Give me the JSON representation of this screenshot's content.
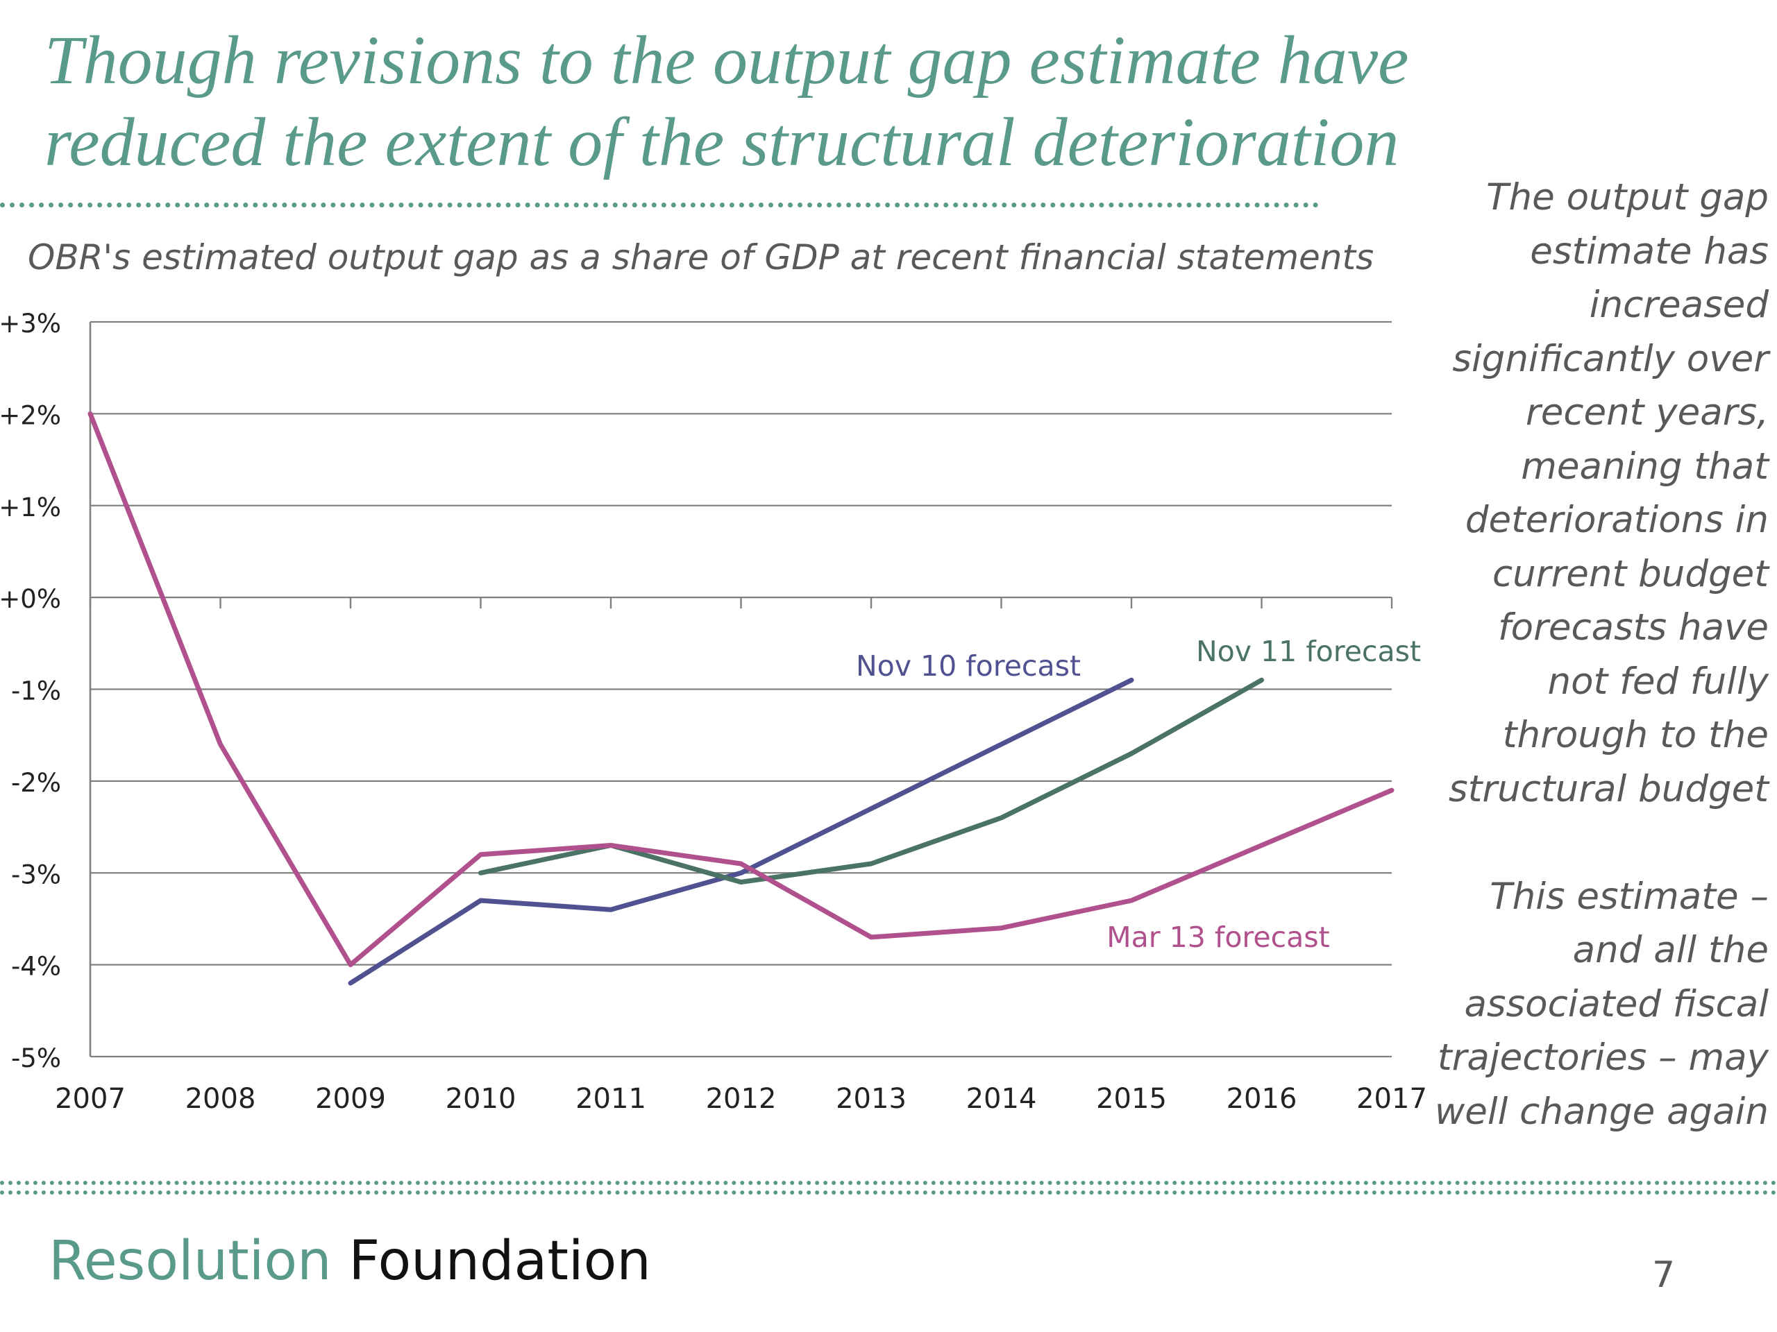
{
  "slide": {
    "title": "Though revisions to the output gap estimate have reduced the extent of the structural deterioration",
    "side_note_1": "The output gap estimate has increased significantly over recent years, meaning that deteriorations in current budget forecasts have not fed fully through to the structural budget",
    "side_note_2": "This estimate – and all the associated fiscal trajectories – may well change again",
    "brand_part1": "Resolution",
    "brand_part2": "Foundation",
    "page_number": "7"
  },
  "colors": {
    "title": "#5a9a8a",
    "nov10": "#4f5190",
    "nov11": "#4a7365",
    "mar13": "#b0508c",
    "grid": "#808080"
  },
  "chart_data": {
    "type": "line",
    "title": "OBR's estimated output gap as a share of GDP at recent financial statements",
    "xlabel": "",
    "ylabel": "",
    "x": [
      2007,
      2008,
      2009,
      2010,
      2011,
      2012,
      2013,
      2014,
      2015,
      2016,
      2017
    ],
    "ylim": [
      -5,
      3
    ],
    "y_ticks": [
      3,
      2,
      1,
      0,
      -1,
      -2,
      -3,
      -4,
      -5
    ],
    "y_tick_labels": [
      "+3%",
      "+2%",
      "+1%",
      "+0%",
      "-1%",
      "-2%",
      "-3%",
      "-4%",
      "-5%"
    ],
    "grid": true,
    "series": [
      {
        "name": "Nov 10 forecast",
        "color": "#4f5190",
        "points": [
          [
            2009,
            -4.2
          ],
          [
            2010,
            -3.3
          ],
          [
            2011,
            -3.4
          ],
          [
            2012,
            -3.0
          ],
          [
            2013,
            -2.3
          ],
          [
            2014,
            -1.6
          ],
          [
            2015,
            -0.9
          ]
        ]
      },
      {
        "name": "Nov 11 forecast",
        "color": "#4a7365",
        "points": [
          [
            2010,
            -3.0
          ],
          [
            2011,
            -2.7
          ],
          [
            2012,
            -3.1
          ],
          [
            2013,
            -2.9
          ],
          [
            2014,
            -2.4
          ],
          [
            2015,
            -1.7
          ],
          [
            2016,
            -0.9
          ]
        ]
      },
      {
        "name": "Mar 13 forecast",
        "color": "#b0508c",
        "points": [
          [
            2007,
            2.0
          ],
          [
            2008,
            -1.6
          ],
          [
            2009,
            -4.0
          ],
          [
            2010,
            -2.8
          ],
          [
            2011,
            -2.7
          ],
          [
            2012,
            -2.9
          ],
          [
            2013,
            -3.7
          ],
          [
            2014,
            -3.6
          ],
          [
            2015,
            -3.3
          ],
          [
            2016,
            -2.7
          ],
          [
            2017,
            -2.1
          ]
        ]
      }
    ]
  }
}
